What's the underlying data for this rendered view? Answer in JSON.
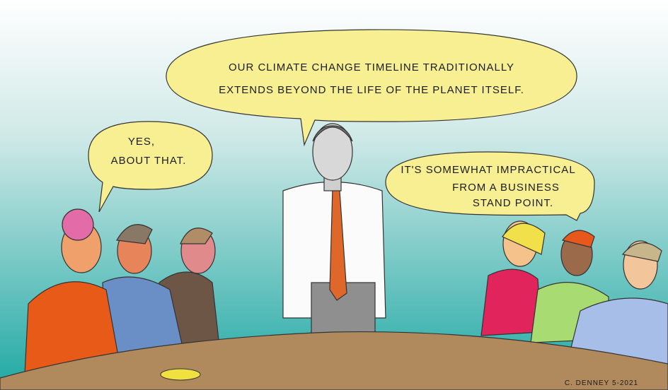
{
  "bubbles": [
    {
      "lines": [
        "OUR CLIMATE CHANGE TIMELINE TRADITIONALLY",
        "EXTENDS BEYOND THE LIFE OF THE PLANET ITSELF."
      ]
    },
    {
      "lines": [
        "YES,",
        "ABOUT THAT."
      ]
    },
    {
      "lines": [
        "IT'S SOMEWHAT IMPRACTICAL",
        "FROM A BUSINESS",
        "STAND POINT."
      ]
    }
  ],
  "signature": "C. DENNEY 5-2021"
}
